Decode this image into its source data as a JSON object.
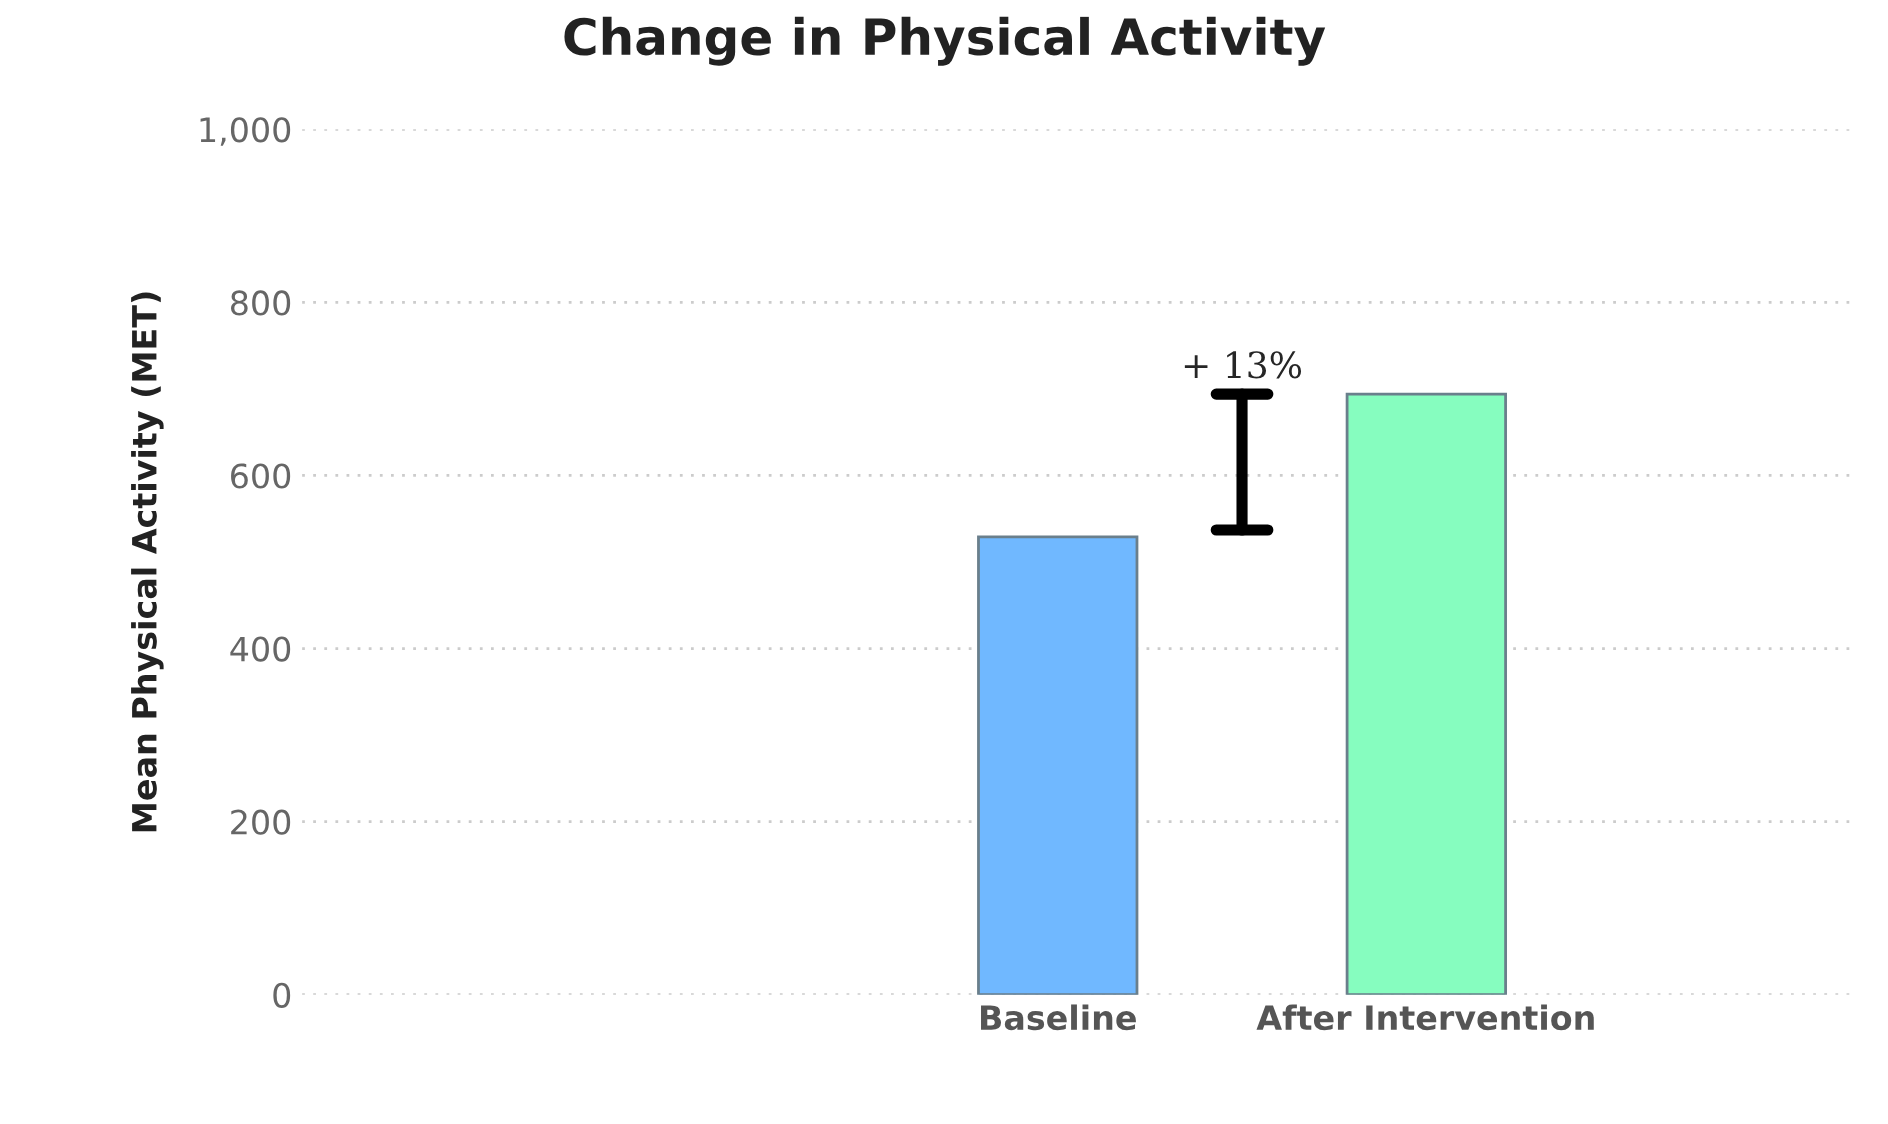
{
  "chart_data": {
    "type": "bar",
    "title": "Change in Physical Activity",
    "ylabel": "Mean Physical Activity (MET)",
    "categories": [
      "Baseline",
      "After Intervention"
    ],
    "values": [
      529,
      694
    ],
    "colors": [
      "#70b8ff",
      "#86fdbf"
    ],
    "ylim": [
      0,
      1000
    ],
    "yticks": [
      0,
      200,
      400,
      600,
      800,
      {
        "value": 1000,
        "label": "1,000"
      }
    ],
    "grid": "y",
    "annotations": [
      "+ 13%"
    ]
  }
}
